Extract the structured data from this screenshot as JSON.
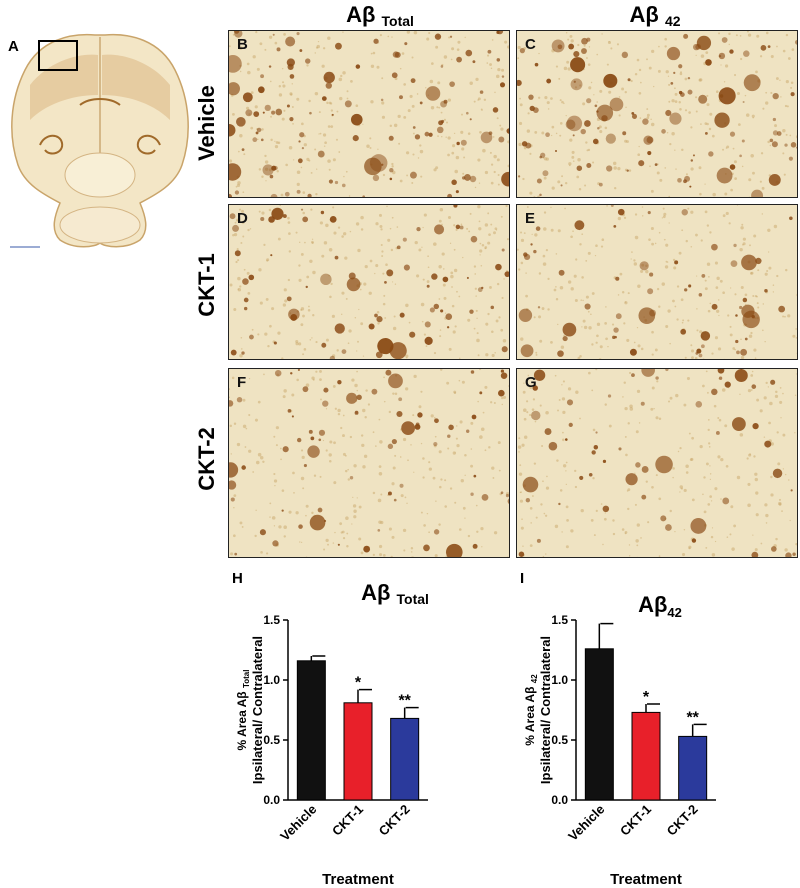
{
  "panels": {
    "a": "A",
    "b": "B",
    "c": "C",
    "d": "D",
    "e": "E",
    "f": "F",
    "g": "G",
    "h": "H",
    "i": "I"
  },
  "columns": {
    "total": {
      "main": "Aβ",
      "sub": "Total"
    },
    "a42": {
      "main": "Aβ",
      "sub": "42"
    }
  },
  "rows": [
    "Vehicle",
    "CKT-1",
    "CKT-2"
  ],
  "colors": {
    "vehicle": "#111111",
    "ckt1": "#e8202a",
    "ckt2": "#2b3a9c",
    "stain": "#8a4a14",
    "tissue": "#efe3c2"
  },
  "chart_data": [
    {
      "type": "bar",
      "title": "Aβ Total",
      "title_main": "Aβ",
      "title_sub": "Total",
      "categories": [
        "Vehicle",
        "CKT-1",
        "CKT-2"
      ],
      "values": [
        1.16,
        0.81,
        0.68
      ],
      "errors": [
        0.04,
        0.11,
        0.09
      ],
      "significance": [
        "",
        "*",
        "**"
      ],
      "ylabel_line1": "% Area Aβ",
      "ylabel_line1_sub": "Total",
      "ylabel_line2": "Ipsilateral/ Contralateral",
      "xlabel": "Treatment",
      "ylim": [
        0,
        1.5
      ],
      "yticks": [
        "0.0",
        "0.5",
        "1.0",
        "1.5"
      ]
    },
    {
      "type": "bar",
      "title": "Aβ42",
      "title_main": "Aβ",
      "title_sub": "42",
      "categories": [
        "Vehicle",
        "CKT-1",
        "CKT-2"
      ],
      "values": [
        1.26,
        0.73,
        0.53
      ],
      "errors": [
        0.21,
        0.07,
        0.1
      ],
      "significance": [
        "",
        "*",
        "**"
      ],
      "ylabel_line1": "% Area Aβ",
      "ylabel_line1_sub": "42",
      "ylabel_line2": "Ipsilateral/ Contralateral",
      "xlabel": "Treatment",
      "ylim": [
        0,
        1.5
      ],
      "yticks": [
        "0.0",
        "0.5",
        "1.0",
        "1.5"
      ]
    }
  ]
}
